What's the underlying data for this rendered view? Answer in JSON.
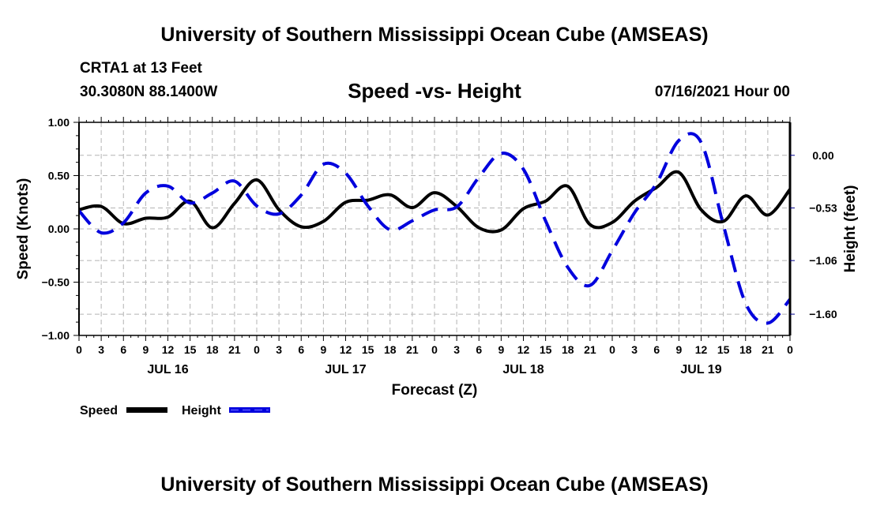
{
  "header": {
    "main_title": "University of Southern Mississippi Ocean Cube (AMSEAS)",
    "station": "CRTA1 at 13 Feet",
    "coords": "30.3080N  88.1400W",
    "subtitle": "Speed -vs- Height",
    "datestamp": "07/16/2021 Hour 00"
  },
  "footer": {
    "title": "University of Southern Mississippi Ocean Cube (AMSEAS)"
  },
  "colors": {
    "speed": "#000000",
    "height": "#0000dd",
    "grid": "#b4b4b4"
  },
  "chart_data": {
    "type": "line",
    "title": "Speed -vs- Height",
    "xlabel": "Forecast (Z)",
    "ylabel": "Speed (Knots)",
    "y2label": "Height (feet)",
    "x_hours": [
      0,
      3,
      6,
      9,
      12,
      15,
      18,
      21,
      24,
      27,
      30,
      33,
      36,
      39,
      42,
      45,
      48,
      51,
      54,
      57,
      60,
      63,
      66,
      69,
      72,
      75,
      78,
      81,
      84,
      87,
      90,
      93,
      96
    ],
    "x_tick_labels": [
      "0",
      "3",
      "6",
      "9",
      "12",
      "15",
      "18",
      "21",
      "0",
      "3",
      "6",
      "9",
      "12",
      "15",
      "18",
      "21",
      "0",
      "3",
      "6",
      "9",
      "12",
      "15",
      "18",
      "21",
      "0",
      "3",
      "6",
      "9",
      "12",
      "15",
      "18",
      "21",
      "0"
    ],
    "day_labels": [
      {
        "label": "JUL 16",
        "center_hour": 12
      },
      {
        "label": "JUL 17",
        "center_hour": 36
      },
      {
        "label": "JUL 18",
        "center_hour": 60
      },
      {
        "label": "JUL 19",
        "center_hour": 84
      }
    ],
    "xlim": [
      0,
      96
    ],
    "ylim": [
      -1.0,
      1.0
    ],
    "y_ticks": [
      1.0,
      0.5,
      0.0,
      -0.5,
      -1.0
    ],
    "y_tick_labels": [
      "1.00",
      "0.50",
      "0.00",
      "−0.50",
      "−1.00"
    ],
    "y2lim": [
      -1.814,
      0.332
    ],
    "y2_ticks": [
      0.0,
      -0.53,
      -1.06,
      -1.6
    ],
    "y2_tick_labels": [
      "0.00",
      "−0.53",
      "−1.06",
      "−1.60"
    ],
    "grid": true,
    "legend_position": "bottom-left",
    "series": [
      {
        "name": "Speed",
        "axis": "left",
        "style": "solid",
        "values": [
          0.18,
          0.21,
          0.05,
          0.1,
          0.11,
          0.26,
          0.01,
          0.24,
          0.46,
          0.18,
          0.02,
          0.07,
          0.25,
          0.27,
          0.32,
          0.2,
          0.34,
          0.21,
          0.01,
          -0.01,
          0.19,
          0.26,
          0.4,
          0.04,
          0.06,
          0.26,
          0.39,
          0.53,
          0.18,
          0.07,
          0.31,
          0.13,
          0.37
        ]
      },
      {
        "name": "Height",
        "axis": "right",
        "style": "dashed",
        "values": [
          -0.56,
          -0.78,
          -0.68,
          -0.38,
          -0.31,
          -0.48,
          -0.38,
          -0.26,
          -0.51,
          -0.59,
          -0.4,
          -0.09,
          -0.18,
          -0.51,
          -0.75,
          -0.66,
          -0.55,
          -0.52,
          -0.22,
          0.02,
          -0.14,
          -0.66,
          -1.13,
          -1.31,
          -0.96,
          -0.58,
          -0.28,
          0.15,
          0.13,
          -0.7,
          -1.49,
          -1.69,
          -1.45
        ]
      }
    ]
  }
}
